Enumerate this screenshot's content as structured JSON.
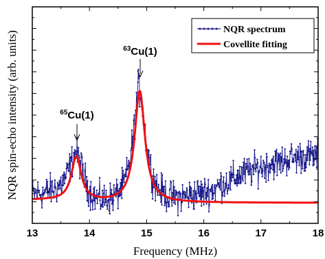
{
  "chart_data": {
    "type": "line",
    "xlabel": "Frequency (MHz)",
    "ylabel": "NQR spin-echo intensity (arb. units)",
    "xlim": [
      13,
      18
    ],
    "ylim": [
      0,
      1
    ],
    "x_ticks": [
      "13",
      "14",
      "15",
      "16",
      "17",
      "18"
    ],
    "y_ticks_labeled": false,
    "legend_position": "top-right",
    "series": [
      {
        "name": "NQR spectrum",
        "color": "#1a1a8c",
        "style": "line-with-dots",
        "x": [
          13.0,
          13.1,
          13.2,
          13.3,
          13.4,
          13.5,
          13.6,
          13.7,
          13.75,
          13.8,
          13.9,
          14.0,
          14.1,
          14.2,
          14.3,
          14.4,
          14.5,
          14.6,
          14.7,
          14.8,
          14.85,
          14.9,
          15.0,
          15.1,
          15.2,
          15.3,
          15.4,
          15.5,
          15.6,
          15.7,
          15.8,
          15.9,
          16.0,
          16.1,
          16.2,
          16.3,
          16.4,
          16.5,
          16.6,
          16.7,
          16.8,
          16.9,
          17.0,
          17.1,
          17.2,
          17.3,
          17.4,
          17.5,
          17.6,
          17.7,
          17.8,
          17.9,
          18.0
        ],
        "y": [
          0.13,
          0.14,
          0.14,
          0.15,
          0.16,
          0.18,
          0.22,
          0.29,
          0.33,
          0.31,
          0.22,
          0.15,
          0.12,
          0.11,
          0.11,
          0.12,
          0.14,
          0.18,
          0.27,
          0.48,
          0.63,
          0.6,
          0.36,
          0.22,
          0.16,
          0.14,
          0.12,
          0.12,
          0.12,
          0.13,
          0.13,
          0.14,
          0.14,
          0.15,
          0.16,
          0.18,
          0.19,
          0.2,
          0.22,
          0.23,
          0.24,
          0.25,
          0.26,
          0.27,
          0.28,
          0.28,
          0.29,
          0.3,
          0.3,
          0.31,
          0.31,
          0.31,
          0.31
        ]
      },
      {
        "name": "Covellite fitting",
        "color": "#ee1111",
        "style": "thick-line"
      }
    ],
    "annotations": [
      {
        "base": "Cu(1)",
        "isotope": "65",
        "x": 13.78,
        "y": 0.285
      },
      {
        "base": "Cu(1)",
        "isotope": "63",
        "x": 14.88,
        "y": 0.62
      }
    ]
  }
}
